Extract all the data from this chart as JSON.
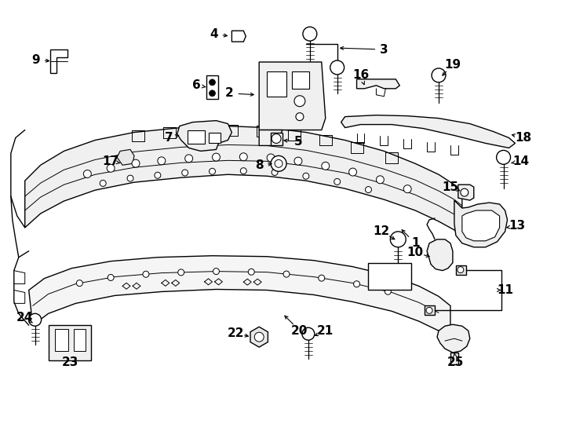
{
  "bg_color": "#ffffff",
  "line_color": "#000000",
  "lw": 1.0,
  "fig_width": 7.34,
  "fig_height": 5.4
}
